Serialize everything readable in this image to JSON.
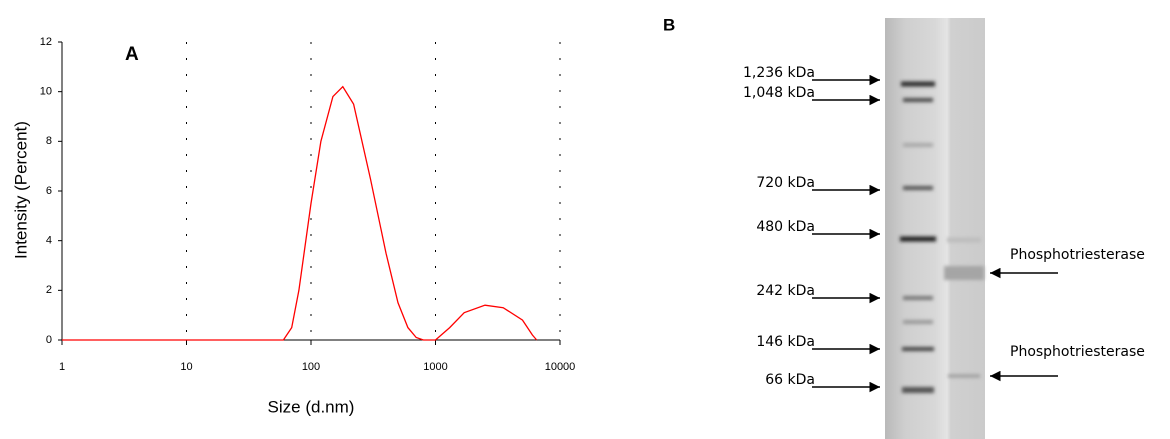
{
  "chart_data": {
    "type": "line",
    "panel_label": "A",
    "x_label": "Size (d.nm)",
    "y_label": "Intensity (Percent)",
    "x": [
      1,
      60,
      70,
      80,
      100,
      120,
      150,
      180,
      220,
      300,
      400,
      500,
      600,
      700,
      800,
      1000,
      1300,
      1700,
      2500,
      3500,
      5000,
      6000,
      6500
    ],
    "values": [
      0,
      0,
      0.5,
      2,
      5.5,
      8,
      9.8,
      10.2,
      9.5,
      6.5,
      3.5,
      1.5,
      0.5,
      0.1,
      0,
      0,
      0.5,
      1.1,
      1.4,
      1.3,
      0.8,
      0.2,
      0
    ],
    "color": "#ff0000",
    "log_x": true,
    "xlim": [
      1,
      10000
    ],
    "xticks": [
      1,
      10,
      100,
      1000,
      10000
    ],
    "ylim": [
      0,
      12
    ],
    "yticks": [
      0,
      2,
      4,
      6,
      8,
      10,
      12
    ],
    "grid": true
  },
  "gel": {
    "panel_label": "B",
    "markers": [
      "1,236 kDa",
      "1,048 kDa",
      "720 kDa",
      "480 kDa",
      "242 kDa",
      "146 kDa",
      "66 kDa"
    ],
    "bands": [
      "Phosphotriesterase",
      "Phosphotriesterase"
    ]
  }
}
